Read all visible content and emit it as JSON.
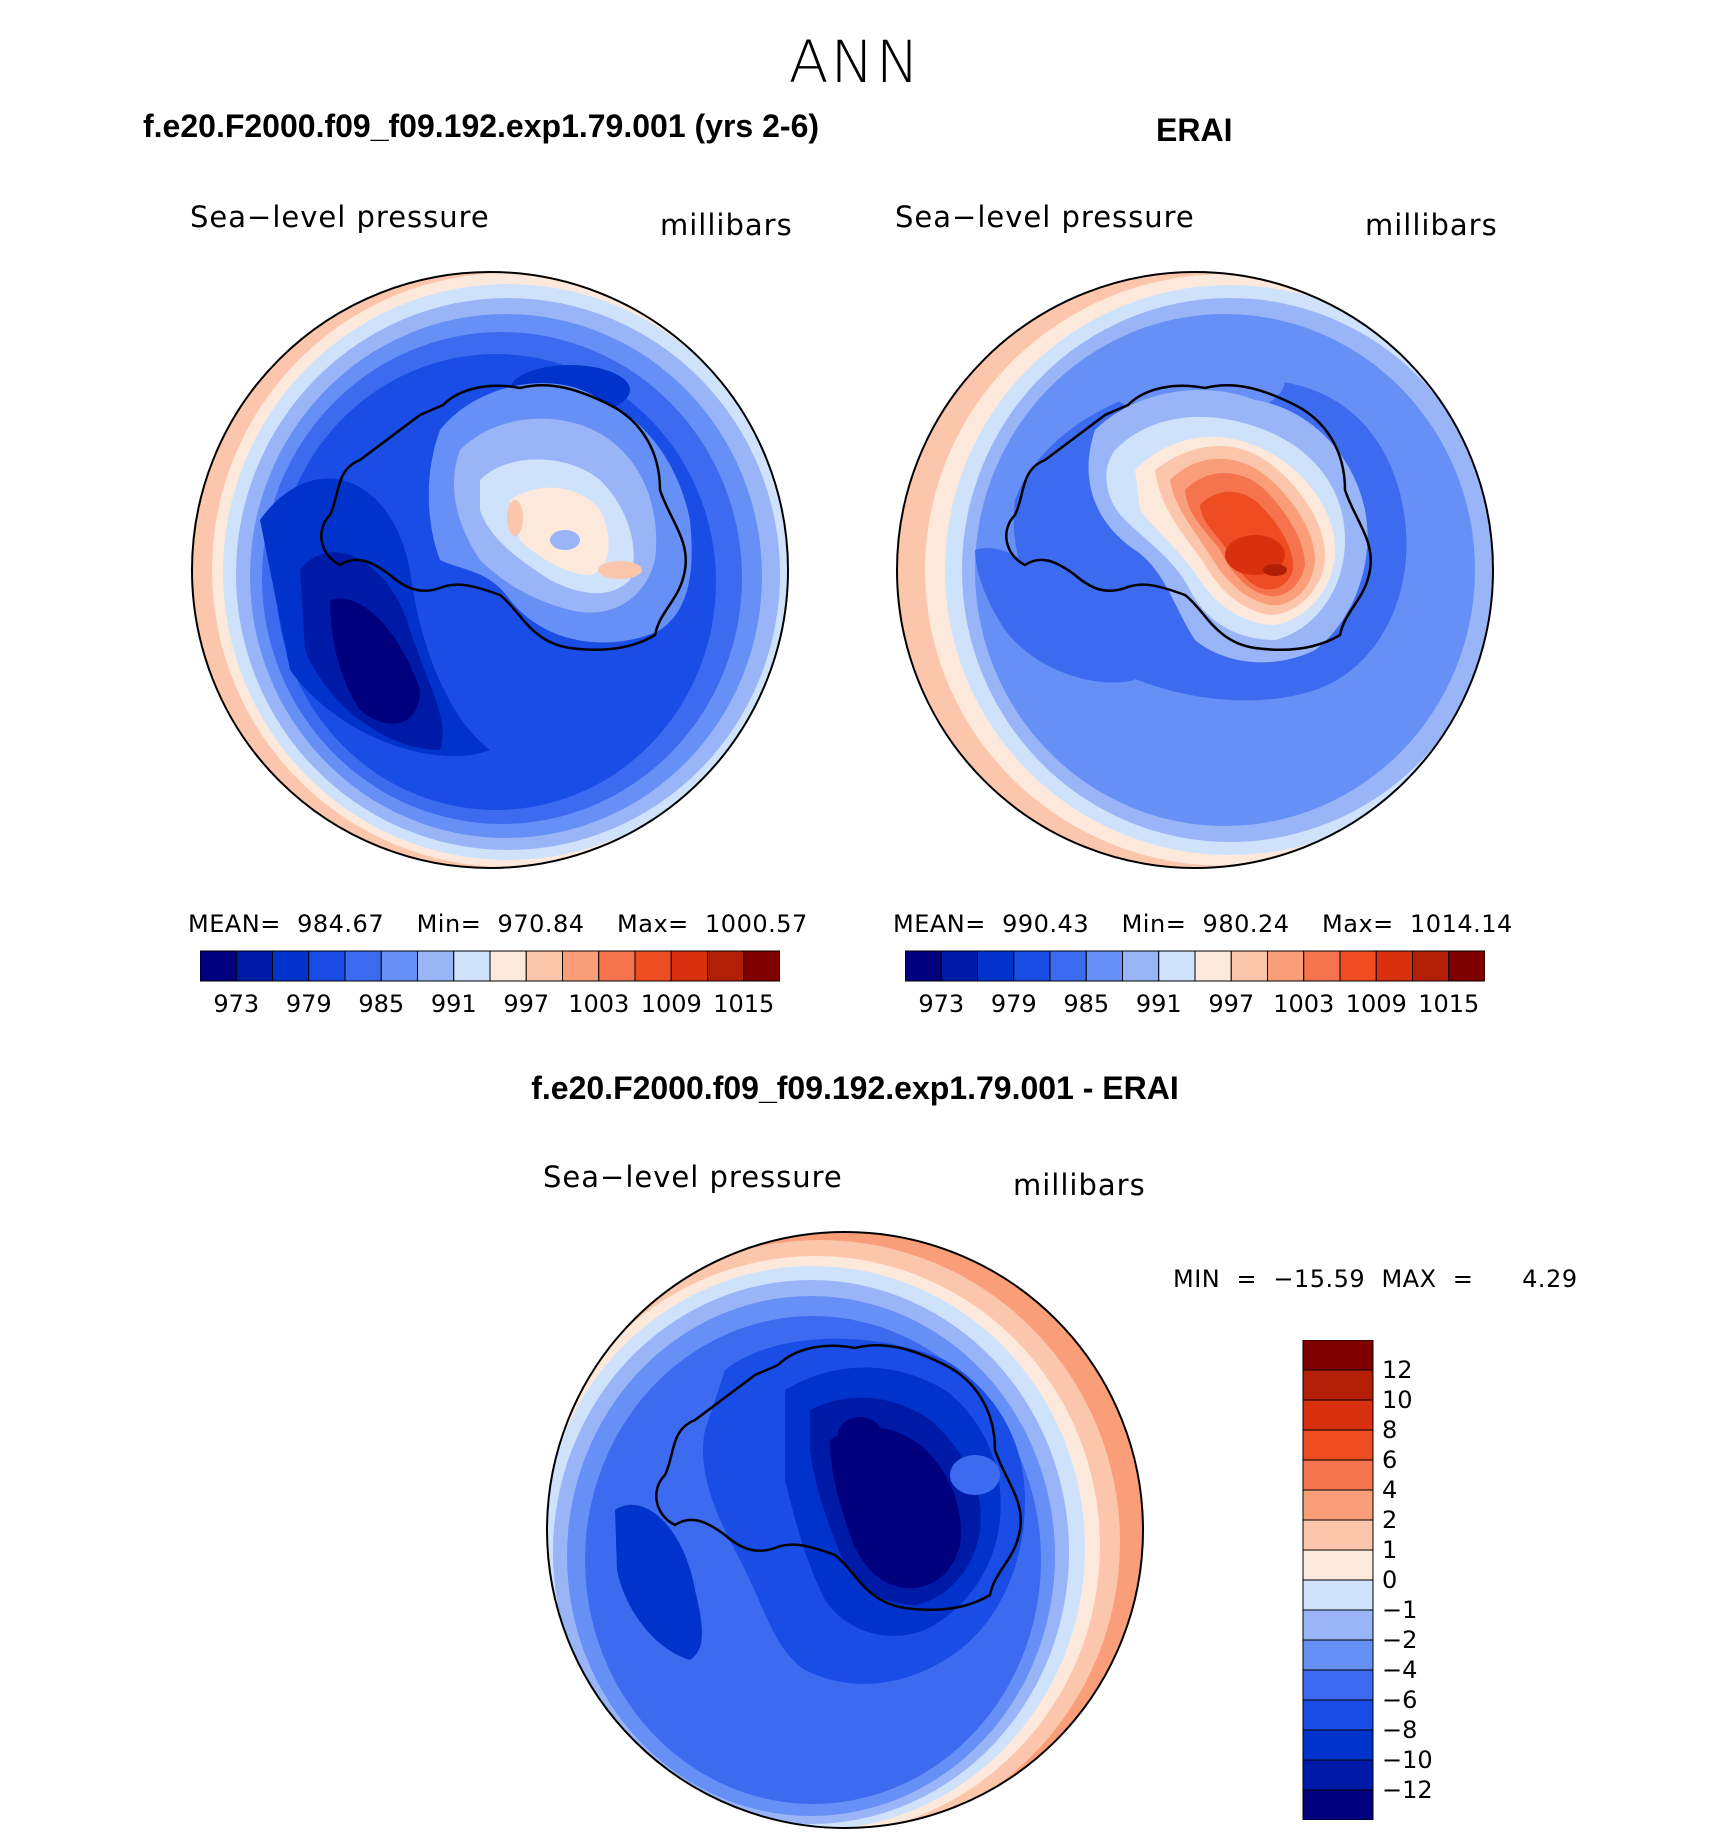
{
  "figure": {
    "season": "ANN",
    "panels": [
      {
        "case_name": "f.e20.F2000.f09_f09.192.exp1.79.001 (yrs 2-6)",
        "variable_label": "Sea−level pressure",
        "units_label": "millibars",
        "stats_text": "MEAN=  984.67    Min=  970.84    Max=  1000.57"
      },
      {
        "case_name": "ERAI",
        "variable_label": "Sea−level pressure",
        "units_label": "millibars",
        "stats_text": "MEAN=  990.43    Min=  980.24    Max=  1014.14"
      },
      {
        "case_name": "f.e20.F2000.f09_f09.192.exp1.79.001 - ERAI",
        "variable_label": "Sea−level pressure",
        "units_label": "millibars",
        "stats_text": "MIN  =  −15.59  MAX  =      4.29"
      }
    ],
    "abs_colorbar": {
      "colors": [
        "#00007f",
        "#001aa8",
        "#0033cc",
        "#1a4de6",
        "#3d6bf0",
        "#6690f5",
        "#99b4f7",
        "#cfe2fb",
        "#fde8dc",
        "#fcc6ad",
        "#fa9e7a",
        "#f5744e",
        "#ee4d24",
        "#d9300f",
        "#b31f06",
        "#800000"
      ],
      "tick_labels": [
        "973",
        "979",
        "985",
        "991",
        "997",
        "1003",
        "1009",
        "1015"
      ]
    },
    "diff_colorbar": {
      "colors": [
        "#00007f",
        "#001aa8",
        "#0033cc",
        "#1a4de6",
        "#3d6bf0",
        "#6690f5",
        "#99b4f7",
        "#cfe2fb",
        "#fde8dc",
        "#fcc6ad",
        "#fa9e7a",
        "#f5744e",
        "#ee4d24",
        "#d9300f",
        "#b31f06",
        "#800000"
      ],
      "tick_labels": [
        "−12",
        "−10",
        "−8",
        "−6",
        "−4",
        "−2",
        "−1",
        "0",
        "1",
        "2",
        "4",
        "6",
        "8",
        "10",
        "12"
      ]
    }
  }
}
